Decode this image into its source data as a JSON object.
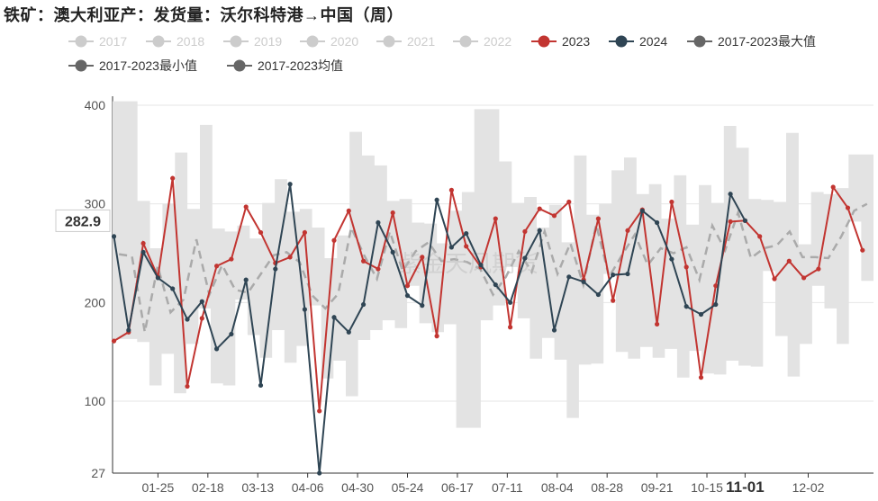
{
  "title": "铁矿：澳大利亚产：发货量：沃尔科特港→中国（周）",
  "colors": {
    "inactive": "#cccccc",
    "s2023": "#c23531",
    "s2024": "#2f4554",
    "max": "#666666",
    "band": "#e3e3e3",
    "avg": "#aaaaaa"
  },
  "legend": [
    {
      "name": "2017",
      "active": false,
      "color": "#cccccc"
    },
    {
      "name": "2018",
      "active": false,
      "color": "#cccccc"
    },
    {
      "name": "2019",
      "active": false,
      "color": "#cccccc"
    },
    {
      "name": "2020",
      "active": false,
      "color": "#cccccc"
    },
    {
      "name": "2021",
      "active": false,
      "color": "#cccccc"
    },
    {
      "name": "2022",
      "active": false,
      "color": "#cccccc"
    },
    {
      "name": "2023",
      "active": true,
      "color": "#c23531"
    },
    {
      "name": "2024",
      "active": true,
      "color": "#2f4554"
    },
    {
      "name": "2017-2023最大值",
      "active": true,
      "color": "#666666"
    },
    {
      "name": "2017-2023最小值",
      "active": true,
      "color": "#666666"
    },
    {
      "name": "2017-2023均值",
      "active": true,
      "color": "#666666"
    }
  ],
  "watermark": "紫金天风期货",
  "chart_data": {
    "type": "line",
    "y_ticks": [
      27,
      100,
      200,
      300,
      400
    ],
    "ylim": [
      27,
      410
    ],
    "x_tick_labels": [
      "01-25",
      "02-18",
      "03-13",
      "04-06",
      "04-30",
      "05-24",
      "06-17",
      "07-11",
      "08-04",
      "08-28",
      "09-21",
      "10-15",
      "11-01",
      "12-02"
    ],
    "x_tick_weeks": [
      4,
      7.4,
      10.8,
      14.2,
      17.6,
      21,
      24.4,
      27.8,
      31.2,
      34.6,
      38,
      41.4,
      44,
      48.3
    ],
    "highlight_x_label": "11-01",
    "pointer_y_value": "282.9",
    "series": [
      {
        "name": "2023",
        "color": "#c23531",
        "weeks_start": 1,
        "values": [
          161,
          170,
          260,
          226,
          326,
          115,
          184,
          237,
          244,
          297,
          271,
          240,
          246,
          271,
          90,
          263,
          293,
          242,
          234,
          291,
          217,
          246,
          166,
          314,
          257,
          236,
          285,
          175,
          272,
          295,
          288,
          302,
          223,
          285,
          202,
          273,
          294,
          178,
          302,
          236,
          124,
          217,
          282,
          283,
          267,
          224,
          242,
          225,
          234,
          317,
          296,
          253
        ]
      },
      {
        "name": "2024",
        "color": "#2f4554",
        "weeks_start": 1,
        "values": [
          267,
          172,
          251,
          225,
          214,
          183,
          201,
          153,
          168,
          223,
          116,
          234,
          320,
          193,
          27,
          185,
          170,
          198,
          281,
          251,
          207,
          197,
          304,
          256,
          270,
          238,
          218,
          200,
          245,
          273,
          172,
          226,
          221,
          208,
          228,
          229,
          293,
          281,
          244,
          196,
          188,
          198,
          310,
          283
        ]
      },
      {
        "name": "2017-2023最大值",
        "values": [
          404,
          404,
          303,
          255,
          300,
          352,
          295,
          380,
          275,
          272,
          278,
          265,
          301,
          325,
          292,
          295,
          276,
          245,
          268,
          373,
          349,
          339,
          303,
          305,
          281,
          280,
          260,
          293,
          312,
          396,
          396,
          343,
          301,
          307,
          276,
          299,
          261,
          349,
          289,
          300,
          334,
          347,
          310,
          320,
          285,
          329,
          279,
          319,
          301,
          379,
          357,
          305,
          304,
          302,
          372,
          259,
          312,
          310,
          316,
          350,
          350
        ]
      },
      {
        "name": "2017-2023最小值",
        "values": [
          163,
          163,
          160,
          116,
          148,
          108,
          158,
          194,
          118,
          116,
          203,
          167,
          144,
          172,
          139,
          156,
          197,
          123,
          141,
          105,
          162,
          172,
          182,
          174,
          217,
          179,
          170,
          178,
          73,
          73,
          182,
          197,
          236,
          184,
          143,
          164,
          142,
          83,
          137,
          138,
          229,
          150,
          143,
          155,
          144,
          153,
          124,
          151,
          128,
          127,
          141,
          136,
          135,
          232,
          166,
          125,
          158,
          217,
          194,
          158,
          282,
          222
        ]
      },
      {
        "name": "2017-2023均值",
        "values": [
          249,
          247,
          170,
          237,
          190,
          203,
          264,
          208,
          238,
          213,
          210,
          229,
          248,
          251,
          241,
          207,
          194,
          209,
          276,
          248,
          224,
          272,
          232,
          252,
          261,
          242,
          244,
          241,
          234,
          208,
          226,
          252,
          231,
          272,
          229,
          260,
          218,
          279,
          226,
          248,
          269,
          238,
          255,
          250,
          256,
          223,
          278,
          253,
          291,
          245,
          255,
          258,
          272,
          246,
          246,
          245,
          267,
          293,
          300
        ]
      }
    ]
  }
}
